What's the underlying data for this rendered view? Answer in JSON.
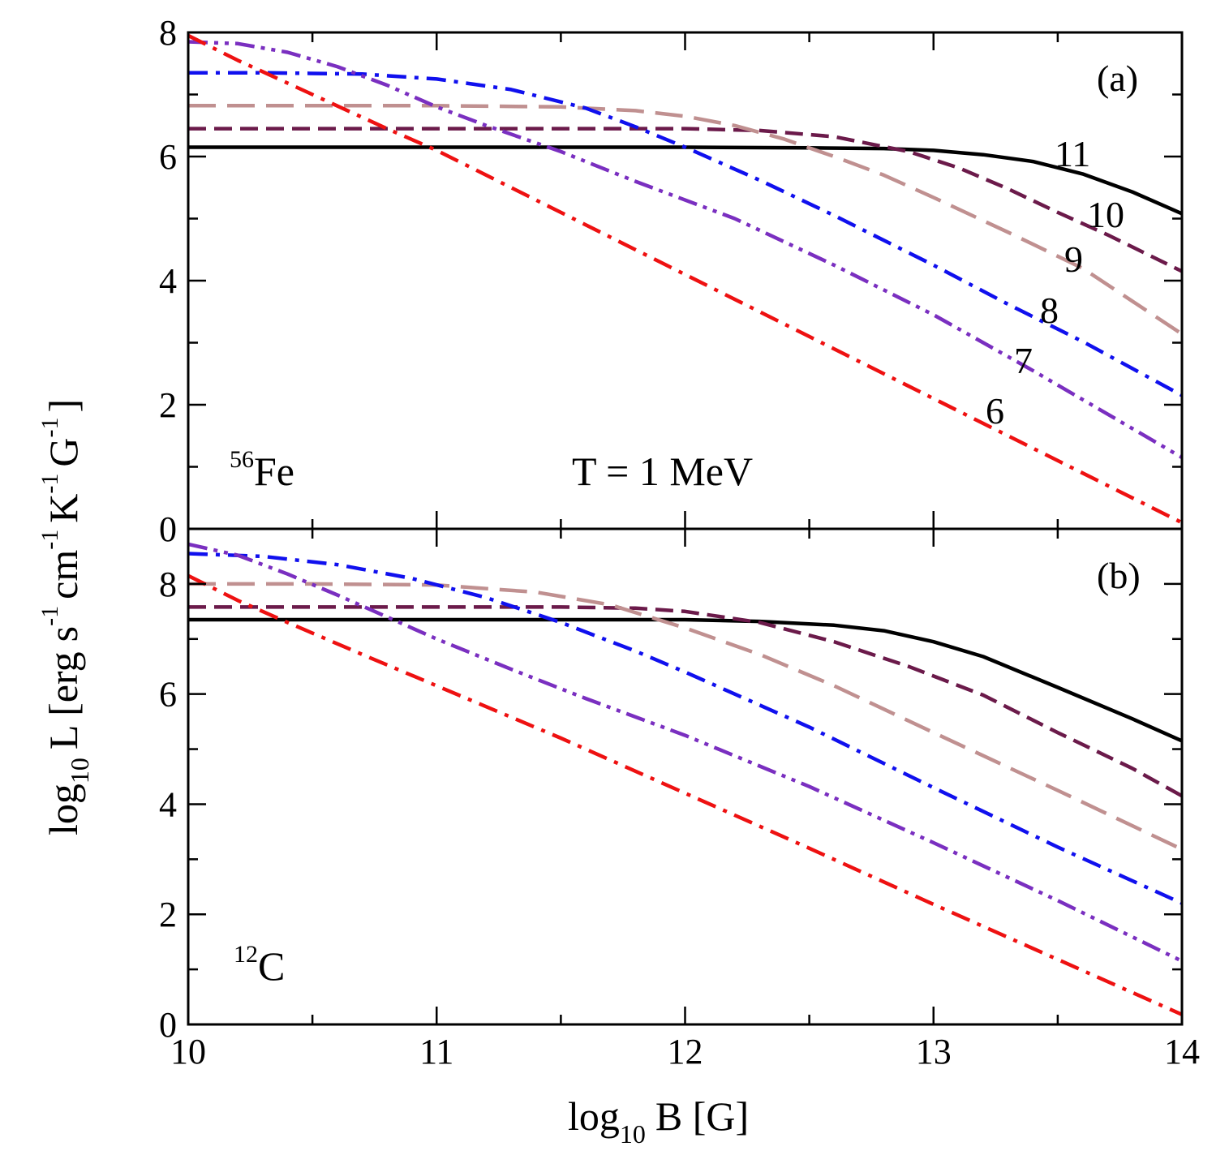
{
  "chart_data": [
    {
      "type": "line",
      "panel_label": "(a)",
      "nucleus_mass": "56",
      "nucleus_symbol": "Fe",
      "temperature_label": "T = 1 MeV",
      "xlim": [
        10,
        14
      ],
      "ylim": [
        0,
        8
      ],
      "xticks": [
        10,
        11,
        12,
        13,
        14
      ],
      "yticks": [
        0,
        2,
        4,
        6,
        8
      ],
      "series": [
        {
          "name": "11",
          "label": "11",
          "color": "#000000",
          "dash": "solid",
          "x": [
            10.0,
            10.5,
            11.0,
            11.5,
            12.0,
            12.5,
            12.8,
            13.0,
            13.2,
            13.4,
            13.6,
            13.8,
            14.0
          ],
          "y": [
            6.15,
            6.15,
            6.15,
            6.15,
            6.15,
            6.14,
            6.13,
            6.1,
            6.03,
            5.92,
            5.72,
            5.43,
            5.08
          ]
        },
        {
          "name": "10",
          "label": "10",
          "color": "#6b1a4a",
          "dash": "dash",
          "x": [
            10.0,
            10.5,
            11.0,
            11.5,
            12.0,
            12.3,
            12.6,
            12.9,
            13.1,
            13.3,
            13.5,
            13.7,
            14.0
          ],
          "y": [
            6.45,
            6.45,
            6.45,
            6.45,
            6.45,
            6.42,
            6.32,
            6.08,
            5.82,
            5.48,
            5.1,
            4.74,
            4.15
          ]
        },
        {
          "name": "9",
          "label": "9",
          "color": "#c09090",
          "dash": "longdash",
          "x": [
            10.0,
            10.5,
            11.0,
            11.5,
            11.8,
            12.0,
            12.2,
            12.4,
            12.6,
            12.8,
            13.0,
            13.3,
            13.6,
            14.0
          ],
          "y": [
            6.82,
            6.82,
            6.82,
            6.8,
            6.74,
            6.65,
            6.5,
            6.28,
            6.0,
            5.7,
            5.34,
            4.78,
            4.2,
            3.14
          ]
        },
        {
          "name": "8",
          "label": "8",
          "color": "#1010ee",
          "dash": "dashdot",
          "x": [
            10.0,
            10.3,
            10.7,
            11.0,
            11.3,
            11.6,
            11.8,
            12.0,
            12.3,
            12.6,
            13.0,
            13.3,
            13.6,
            14.0
          ],
          "y": [
            7.35,
            7.35,
            7.33,
            7.25,
            7.08,
            6.78,
            6.48,
            6.15,
            5.62,
            5.05,
            4.25,
            3.62,
            3.02,
            2.15
          ]
        },
        {
          "name": "7",
          "label": "7",
          "color": "#7a2fc0",
          "dash": "dashdotdot",
          "x": [
            10.0,
            10.2,
            10.4,
            10.6,
            10.8,
            11.0,
            11.2,
            11.5,
            11.8,
            12.2,
            12.6,
            13.0,
            13.4,
            14.0
          ],
          "y": [
            7.85,
            7.82,
            7.68,
            7.45,
            7.15,
            6.8,
            6.5,
            6.08,
            5.6,
            5.0,
            4.25,
            3.45,
            2.55,
            1.15
          ]
        },
        {
          "name": "6",
          "label": "6",
          "color": "#ee1111",
          "dash": "dashdot",
          "x": [
            10.0,
            10.2,
            10.5,
            10.8,
            11.0,
            11.5,
            12.0,
            12.5,
            13.0,
            13.5,
            14.0
          ],
          "y": [
            7.95,
            7.55,
            7.0,
            6.45,
            6.1,
            5.1,
            4.1,
            3.1,
            2.1,
            1.1,
            0.1
          ]
        }
      ]
    },
    {
      "type": "line",
      "panel_label": "(b)",
      "nucleus_mass": "12",
      "nucleus_symbol": "C",
      "xlim": [
        10,
        14
      ],
      "ylim": [
        0,
        9
      ],
      "xticks": [
        10,
        11,
        12,
        13,
        14
      ],
      "yticks": [
        0,
        2,
        4,
        6,
        8
      ],
      "series": [
        {
          "name": "11",
          "color": "#000000",
          "dash": "solid",
          "x": [
            10.0,
            10.5,
            11.0,
            11.5,
            12.0,
            12.3,
            12.6,
            12.8,
            13.0,
            13.2,
            13.5,
            13.8,
            14.0
          ],
          "y": [
            7.35,
            7.35,
            7.35,
            7.35,
            7.35,
            7.32,
            7.25,
            7.15,
            6.95,
            6.68,
            6.12,
            5.55,
            5.15
          ]
        },
        {
          "name": "10",
          "color": "#6b1a4a",
          "dash": "dash",
          "x": [
            10.0,
            10.5,
            11.0,
            11.5,
            11.8,
            12.0,
            12.3,
            12.6,
            12.9,
            13.2,
            13.5,
            13.8,
            14.0
          ],
          "y": [
            7.58,
            7.58,
            7.58,
            7.58,
            7.56,
            7.5,
            7.3,
            6.95,
            6.5,
            5.98,
            5.3,
            4.65,
            4.15
          ]
        },
        {
          "name": "9",
          "color": "#c09090",
          "dash": "longdash",
          "x": [
            10.0,
            10.5,
            11.0,
            11.4,
            11.7,
            12.0,
            12.3,
            12.6,
            13.0,
            13.5,
            14.0
          ],
          "y": [
            8.0,
            8.0,
            7.98,
            7.85,
            7.62,
            7.2,
            6.72,
            6.15,
            5.3,
            4.25,
            3.18
          ]
        },
        {
          "name": "8",
          "color": "#1010ee",
          "dash": "dashdot",
          "x": [
            10.0,
            10.3,
            10.6,
            10.9,
            11.2,
            11.5,
            11.8,
            12.0,
            12.5,
            13.0,
            13.5,
            14.0
          ],
          "y": [
            8.55,
            8.5,
            8.35,
            8.1,
            7.75,
            7.3,
            6.78,
            6.4,
            5.4,
            4.3,
            3.22,
            2.2
          ]
        },
        {
          "name": "7",
          "color": "#7a2fc0",
          "dash": "dashdotdot",
          "x": [
            10.0,
            10.2,
            10.4,
            10.6,
            10.8,
            11.0,
            11.3,
            11.6,
            12.0,
            12.5,
            13.0,
            13.5,
            14.0
          ],
          "y": [
            8.72,
            8.52,
            8.18,
            7.8,
            7.4,
            7.0,
            6.45,
            5.92,
            5.25,
            4.32,
            3.3,
            2.25,
            1.15
          ]
        },
        {
          "name": "6",
          "color": "#ee1111",
          "dash": "dashdot",
          "x": [
            10.0,
            10.2,
            10.4,
            10.7,
            11.0,
            11.5,
            12.0,
            12.5,
            13.0,
            13.5,
            14.0
          ],
          "y": [
            8.15,
            7.7,
            7.3,
            6.72,
            6.15,
            5.2,
            4.2,
            3.2,
            2.18,
            1.18,
            0.18
          ]
        }
      ]
    }
  ],
  "axes": {
    "y_prefix": "log",
    "y_prefix_sub": "10",
    "y_quantity": "L [erg",
    "y_unit_s": "s",
    "y_unit_cm": "cm",
    "y_unit_K": "K",
    "y_unit_G": "G",
    "y_exp": "-1",
    "y_close": "]",
    "x_prefix": "log",
    "x_prefix_sub": "10",
    "x_quantity": "B [G]"
  },
  "colors": {
    "black": "#000000",
    "purple_dark": "#6b1a4a",
    "rosy": "#c09090",
    "blue": "#1010ee",
    "violet": "#7a2fc0",
    "red": "#ee1111"
  }
}
